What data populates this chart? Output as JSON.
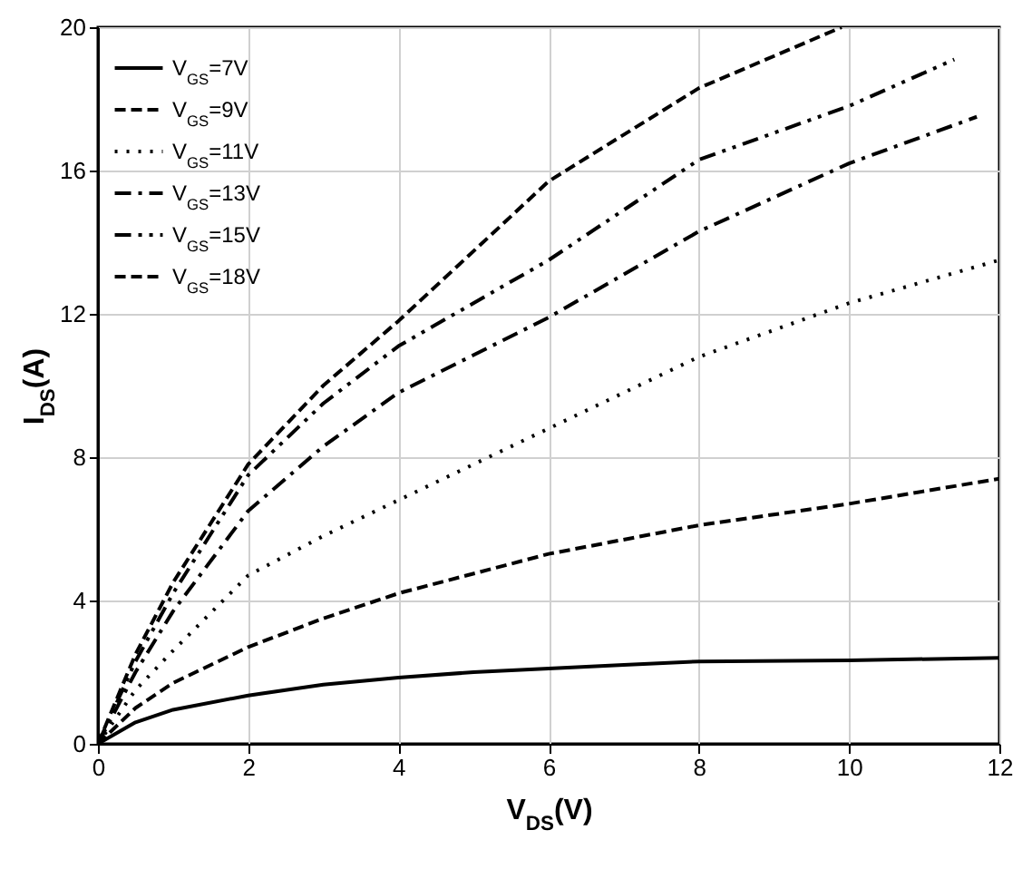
{
  "chart_data": {
    "type": "line",
    "xlabel": "V$_{DS}$(V)",
    "ylabel": "I$_{DS}$(A)",
    "xlim": [
      0,
      12
    ],
    "xticks": [
      0,
      2,
      4,
      6,
      8,
      10,
      12
    ],
    "ylim": [
      0,
      20
    ],
    "yticks": [
      0,
      4,
      8,
      12,
      16,
      20
    ],
    "grid": true,
    "legend": "top left",
    "marker": "none",
    "series": [
      {
        "name": "V$_{GS}$=7V",
        "color": "#000000",
        "line_style": "solid",
        "x": [
          0,
          0.5,
          1,
          2,
          3,
          4,
          5,
          6,
          7,
          8,
          10,
          12
        ],
        "values": [
          0,
          0.6,
          0.95,
          1.35,
          1.65,
          1.85,
          2.0,
          2.1,
          2.2,
          2.3,
          2.33,
          2.4
        ]
      },
      {
        "name": "V$_{GS}$=9V",
        "color": "#000000",
        "line_style": "dashed",
        "x": [
          0,
          0.5,
          1,
          2,
          3,
          4,
          6,
          8,
          10,
          12
        ],
        "values": [
          0,
          1.0,
          1.7,
          2.7,
          3.5,
          4.2,
          5.3,
          6.1,
          6.7,
          7.4
        ]
      },
      {
        "name": "V$_{GS}$=11V",
        "color": "#000000",
        "line_style": "dotted",
        "x": [
          0,
          0.5,
          1,
          2,
          3,
          4,
          6,
          8,
          10,
          12
        ],
        "values": [
          0,
          1.5,
          2.6,
          4.7,
          5.8,
          6.8,
          8.8,
          10.8,
          12.3,
          13.5
        ]
      },
      {
        "name": "V$_{GS}$=13V",
        "color": "#000000",
        "line_style": "dashdot",
        "x": [
          0,
          0.5,
          1,
          2,
          3,
          4,
          6,
          8,
          10,
          11.7
        ],
        "values": [
          0,
          2.0,
          3.7,
          6.5,
          8.3,
          9.8,
          11.9,
          14.3,
          16.2,
          17.5
        ]
      },
      {
        "name": "V$_{GS}$=15V",
        "color": "#000000",
        "line_style": "dashdotdot",
        "x": [
          0,
          0.5,
          1,
          2,
          3,
          4,
          6,
          8,
          10,
          11.4
        ],
        "values": [
          0,
          2.3,
          4.2,
          7.5,
          9.5,
          11.1,
          13.5,
          16.3,
          17.8,
          19.1
        ]
      },
      {
        "name": "V$_{GS}$=18V",
        "color": "#000000",
        "line_style": "dashed",
        "x": [
          0,
          0.5,
          1,
          2,
          3,
          4,
          6,
          8,
          9.9
        ],
        "values": [
          0,
          2.5,
          4.5,
          7.8,
          10.0,
          11.8,
          15.7,
          18.3,
          20
        ]
      }
    ]
  }
}
